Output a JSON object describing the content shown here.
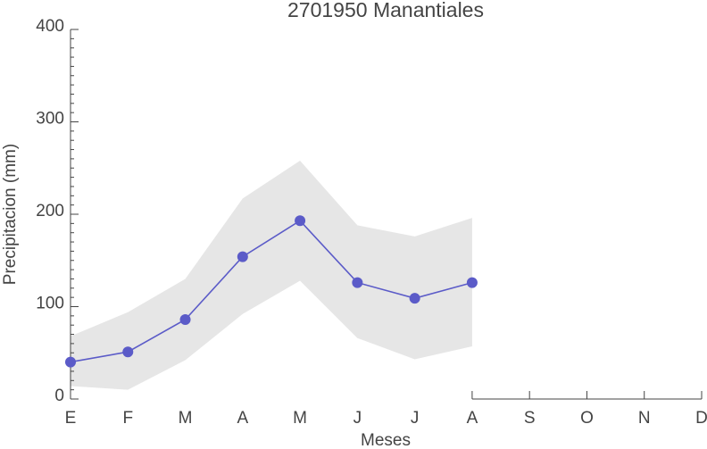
{
  "chart_data": {
    "type": "line",
    "title": "2701950 Manantiales",
    "x_label": "Meses",
    "y_label": "Precipitacion (mm)",
    "categories": [
      "E",
      "F",
      "M",
      "A",
      "M",
      "J",
      "J",
      "A",
      "S",
      "O",
      "N",
      "D"
    ],
    "series": [
      {
        "color": "#5b5bc8",
        "values": [
          40,
          51,
          86,
          154,
          193,
          126,
          109,
          126,
          null,
          null,
          null,
          null
        ]
      }
    ],
    "band": {
      "color": "#e6e6e6",
      "upper": [
        68,
        94,
        130,
        217,
        258,
        188,
        176,
        196,
        null,
        null,
        null,
        null
      ],
      "lower": [
        14,
        10,
        42,
        92,
        128,
        66,
        43,
        57,
        null,
        null,
        null,
        null
      ]
    },
    "ylim": [
      0,
      400
    ],
    "yticks": [
      0,
      100,
      200,
      300,
      400
    ]
  }
}
